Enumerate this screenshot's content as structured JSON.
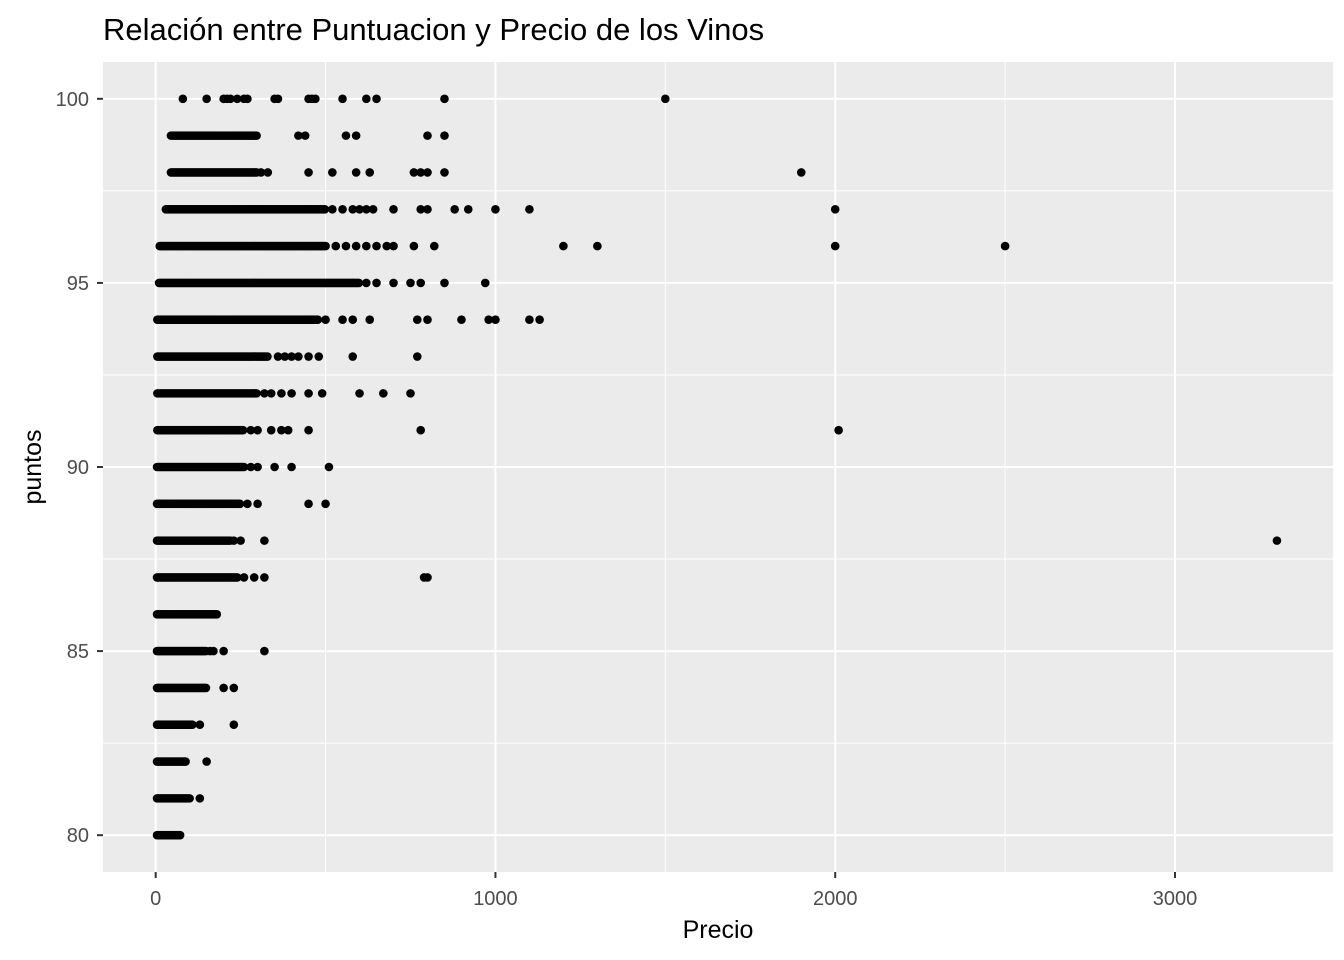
{
  "chart_data": {
    "type": "scatter",
    "title": "Relación entre Puntuacion y Precio de los Vinos",
    "xlabel": "Precio",
    "ylabel": "puntos",
    "xlim": [
      -155,
      3465
    ],
    "ylim": [
      79,
      101
    ],
    "xticks": [
      {
        "value": 0,
        "label": "0"
      },
      {
        "value": 1000,
        "label": "1000"
      },
      {
        "value": 2000,
        "label": "2000"
      },
      {
        "value": 3000,
        "label": "3000"
      }
    ],
    "yticks": [
      {
        "value": 80,
        "label": "80"
      },
      {
        "value": 85,
        "label": "85"
      },
      {
        "value": 90,
        "label": "90"
      },
      {
        "value": 95,
        "label": "95"
      },
      {
        "value": 100,
        "label": "100"
      }
    ],
    "grid": true,
    "point_color": "#000000",
    "panel_background": "#ebebeb",
    "grid_color": "#ffffff",
    "dense_ranges": [
      {
        "y": 100,
        "from": 80,
        "to": 80
      },
      {
        "y": 99,
        "from": 45,
        "to": 300
      },
      {
        "y": 98,
        "from": 45,
        "to": 300
      },
      {
        "y": 97,
        "from": 30,
        "to": 500
      },
      {
        "y": 96,
        "from": 12,
        "to": 500
      },
      {
        "y": 95,
        "from": 10,
        "to": 600
      },
      {
        "y": 94,
        "from": 5,
        "to": 480
      },
      {
        "y": 93,
        "from": 5,
        "to": 330
      },
      {
        "y": 92,
        "from": 5,
        "to": 300
      },
      {
        "y": 91,
        "from": 5,
        "to": 260
      },
      {
        "y": 90,
        "from": 4,
        "to": 260
      },
      {
        "y": 89,
        "from": 4,
        "to": 250
      },
      {
        "y": 88,
        "from": 4,
        "to": 220
      },
      {
        "y": 87,
        "from": 4,
        "to": 240
      },
      {
        "y": 86,
        "from": 4,
        "to": 180
      },
      {
        "y": 85,
        "from": 4,
        "to": 150
      },
      {
        "y": 84,
        "from": 4,
        "to": 150
      },
      {
        "y": 83,
        "from": 4,
        "to": 110
      },
      {
        "y": 82,
        "from": 4,
        "to": 90
      },
      {
        "y": 81,
        "from": 4,
        "to": 100
      },
      {
        "y": 80,
        "from": 4,
        "to": 75
      }
    ],
    "outliers": [
      {
        "y": 100,
        "x": [
          150,
          200,
          210,
          220,
          240,
          260,
          270,
          350,
          360,
          450,
          460,
          470,
          550,
          620,
          650,
          850,
          1500
        ]
      },
      {
        "y": 99,
        "from": 0,
        "x": [
          420,
          440,
          560,
          590,
          800,
          850
        ]
      },
      {
        "y": 98,
        "x": [
          310,
          330,
          450,
          520,
          590,
          630,
          760,
          780,
          800,
          850,
          1900
        ]
      },
      {
        "y": 97,
        "x": [
          520,
          550,
          580,
          600,
          620,
          640,
          700,
          780,
          800,
          880,
          920,
          1000,
          1100,
          2000
        ]
      },
      {
        "y": 96,
        "x": [
          530,
          560,
          590,
          620,
          650,
          680,
          700,
          760,
          820,
          1200,
          1300,
          2000,
          2500
        ]
      },
      {
        "y": 95,
        "x": [
          620,
          650,
          700,
          750,
          780,
          850,
          970
        ]
      },
      {
        "y": 94,
        "x": [
          500,
          550,
          580,
          630,
          770,
          800,
          900,
          980,
          1000,
          1100,
          1130
        ]
      },
      {
        "y": 93,
        "x": [
          360,
          380,
          400,
          420,
          450,
          480,
          580,
          770
        ]
      },
      {
        "y": 92,
        "x": [
          320,
          340,
          370,
          400,
          450,
          490,
          600,
          670,
          750
        ]
      },
      {
        "y": 91,
        "x": [
          280,
          300,
          340,
          370,
          390,
          450,
          780,
          2010
        ]
      },
      {
        "y": 90,
        "x": [
          280,
          300,
          350,
          400,
          510
        ]
      },
      {
        "y": 89,
        "x": [
          270,
          300,
          450,
          500
        ]
      },
      {
        "y": 88,
        "x": [
          230,
          250,
          320,
          3300
        ]
      },
      {
        "y": 87,
        "x": [
          260,
          290,
          320,
          790,
          800
        ]
      },
      {
        "y": 85,
        "x": [
          160,
          170,
          200,
          320
        ]
      },
      {
        "y": 84,
        "x": [
          200,
          230
        ]
      },
      {
        "y": 83,
        "x": [
          130,
          230
        ]
      },
      {
        "y": 82,
        "x": [
          150
        ]
      },
      {
        "y": 81,
        "x": [
          130
        ]
      }
    ]
  }
}
